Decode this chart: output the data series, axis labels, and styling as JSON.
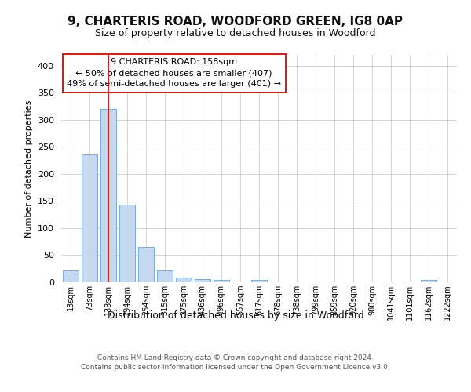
{
  "title1": "9, CHARTERIS ROAD, WOODFORD GREEN, IG8 0AP",
  "title2": "Size of property relative to detached houses in Woodford",
  "xlabel": "Distribution of detached houses by size in Woodford",
  "ylabel": "Number of detached properties",
  "categories": [
    "13sqm",
    "73sqm",
    "133sqm",
    "194sqm",
    "254sqm",
    "315sqm",
    "375sqm",
    "436sqm",
    "496sqm",
    "557sqm",
    "617sqm",
    "678sqm",
    "738sqm",
    "799sqm",
    "859sqm",
    "920sqm",
    "980sqm",
    "1041sqm",
    "1101sqm",
    "1162sqm",
    "1222sqm"
  ],
  "values": [
    22,
    236,
    320,
    143,
    65,
    22,
    8,
    6,
    5,
    0,
    4,
    0,
    0,
    0,
    0,
    0,
    0,
    0,
    0,
    4,
    0
  ],
  "bar_color": "#c5d8ef",
  "bar_edge_color": "#7aadd4",
  "grid_color": "#cccccc",
  "background_color": "#ffffff",
  "plot_bg_color": "#ffffff",
  "vline_x": 2,
  "vline_color": "#cc2222",
  "annotation_text": "9 CHARTERIS ROAD: 158sqm\n← 50% of detached houses are smaller (407)\n49% of semi-detached houses are larger (401) →",
  "annotation_box_color": "#ffffff",
  "annotation_box_edge": "#cc2222",
  "footer": "Contains HM Land Registry data © Crown copyright and database right 2024.\nContains public sector information licensed under the Open Government Licence v3.0.",
  "ylim": [
    0,
    420
  ],
  "yticks": [
    0,
    50,
    100,
    150,
    200,
    250,
    300,
    350,
    400
  ],
  "title1_fontsize": 11,
  "title2_fontsize": 9,
  "ylabel_fontsize": 8,
  "xlabel_fontsize": 9,
  "footer_fontsize": 6.5,
  "tick_labelsize": 8,
  "xtick_labelsize": 7
}
